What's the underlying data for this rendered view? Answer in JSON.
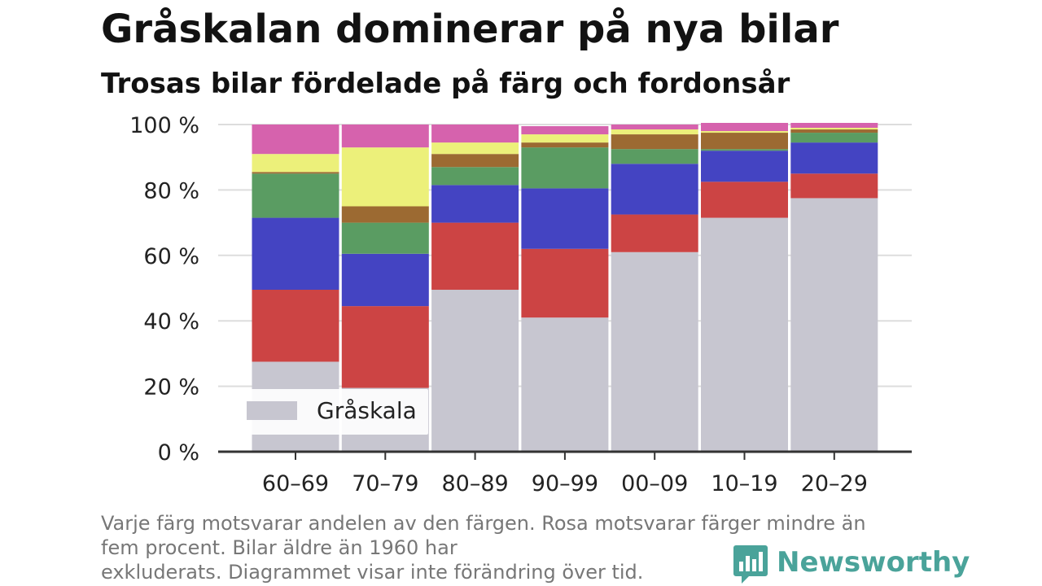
{
  "chart_data": {
    "type": "bar",
    "stacked": true,
    "title": "Gråskalan dominerar på nya bilar",
    "subtitle": "Trosas bilar fördelade på färg och fordonsår",
    "categories": [
      "60–69",
      "70–79",
      "80–89",
      "90–99",
      "00–09",
      "10–19",
      "20–29"
    ],
    "series": [
      {
        "name": "Gråskala",
        "color": "#c7c6d0",
        "values": [
          27.5,
          19.5,
          49.5,
          41,
          61,
          71.5,
          77.5
        ]
      },
      {
        "color": "#cc4444",
        "values": [
          22,
          25,
          20.5,
          21,
          11.5,
          11,
          7.5
        ]
      },
      {
        "color": "#4444c2",
        "values": [
          22,
          16,
          11.5,
          18.5,
          15.5,
          9.5,
          9.5
        ]
      },
      {
        "color": "#5a9c62",
        "values": [
          13.5,
          9.5,
          5.5,
          12.5,
          4.5,
          0.5,
          3
        ]
      },
      {
        "color": "#9c6a32",
        "values": [
          0.5,
          5,
          4,
          1.5,
          4.5,
          5,
          1
        ]
      },
      {
        "color": "#ecf07a",
        "values": [
          5.5,
          18,
          3.5,
          2.5,
          1.5,
          0.5,
          0.5
        ]
      },
      {
        "color": "#d662ad",
        "values": [
          9,
          7,
          5.5,
          2.5,
          1.5,
          2.5,
          1.5
        ]
      }
    ],
    "ylim": [
      0,
      100
    ],
    "yticks": [
      0,
      20,
      40,
      60,
      80,
      100
    ],
    "ytick_labels": [
      "0 %",
      "20 %",
      "40 %",
      "60 %",
      "80 %",
      "100 %"
    ],
    "xlabel": "",
    "ylabel": "",
    "grid": true,
    "legend": {
      "placement": "bottom-left",
      "entries": [
        "Gråskala"
      ]
    }
  },
  "footnote": {
    "lines": [
      "Varje färg motsvarar andelen av den färgen. Rosa motsvarar färger mindre än",
      "fem procent. Bilar äldre än 1960 har",
      "exkluderats. Diagrammet visar inte förändring över tid."
    ]
  },
  "branding": {
    "logo_text": "Newsworthy",
    "logo_icon": "bar-chart-speech-bubble-icon",
    "color": "#4aa39a"
  },
  "colors": {
    "grid": "#dddddd",
    "axis": "#333333",
    "tick_text": "#222222",
    "footnote": "#777777"
  }
}
